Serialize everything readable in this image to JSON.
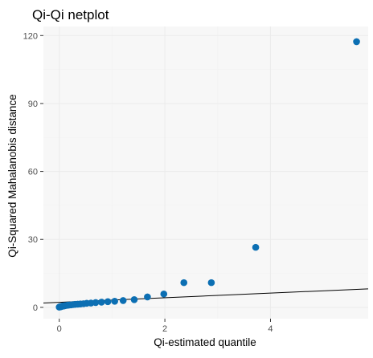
{
  "chart_data": {
    "type": "scatter",
    "title": "Qi-Qi netplot",
    "xlabel": "Qi-estimated quantile",
    "ylabel": "Qi-Squared Mahalanobis distance",
    "xlim": [
      -0.3,
      5.85
    ],
    "ylim": [
      -5,
      124
    ],
    "xticks": [
      0,
      2,
      4
    ],
    "yticks": [
      0,
      30,
      60,
      90,
      120
    ],
    "xticklabels": [
      "0",
      "2",
      "4"
    ],
    "yticklabels": [
      "0",
      "30",
      "60",
      "90",
      "120"
    ],
    "grid": true,
    "legend": "none",
    "colors": {
      "point": "#0c6fb3",
      "line": "#000000",
      "panel": "#f7f7f7",
      "grid_major": "#ebebeb",
      "grid_minor": "#f2f2f2",
      "tick_label": "#4d4d4d"
    },
    "series": [
      {
        "x": [
          0.0,
          0.01,
          0.02,
          0.03,
          0.04,
          0.05,
          0.06,
          0.08,
          0.1,
          0.12,
          0.15,
          0.18,
          0.22,
          0.26,
          0.3,
          0.35,
          0.4,
          0.46,
          0.52,
          0.6,
          0.69,
          0.8,
          0.92,
          1.05,
          1.21,
          1.42,
          1.67,
          1.98,
          2.36,
          2.88,
          3.72,
          5.63
        ],
        "y": [
          0.1,
          0.2,
          0.3,
          0.3,
          0.4,
          0.5,
          0.5,
          0.6,
          0.7,
          0.8,
          0.9,
          1.0,
          1.1,
          1.2,
          1.3,
          1.4,
          1.5,
          1.6,
          1.8,
          1.9,
          2.1,
          2.3,
          2.5,
          2.7,
          3.0,
          3.4,
          4.6,
          5.9,
          10.9,
          10.9,
          26.5,
          117.3
        ]
      }
    ],
    "reference_line": {
      "intercept": 2.2,
      "slope": 1.02
    }
  }
}
